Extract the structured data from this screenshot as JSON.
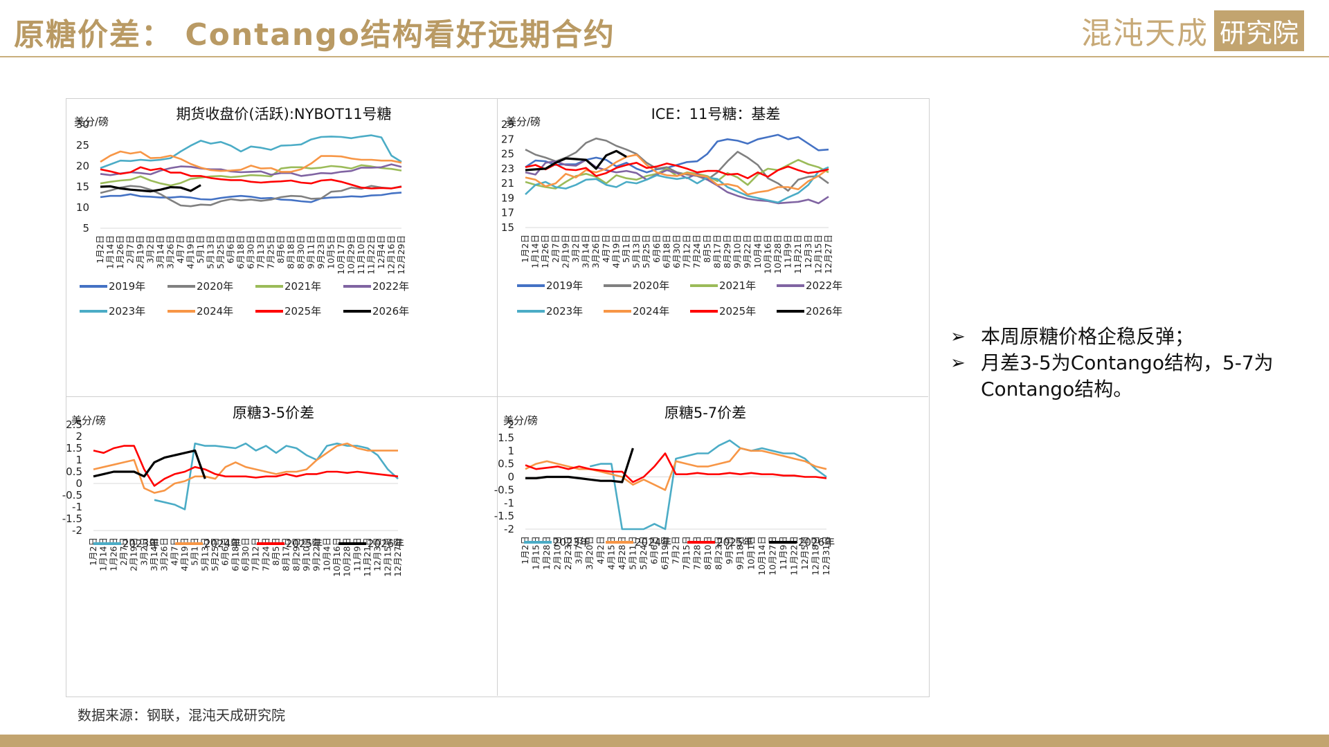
{
  "header": {
    "title": "原糖价差：  Contango结构看好远期合约",
    "logo_text": "混沌天成",
    "logo_box": "研究院"
  },
  "source": "数据来源：钢联，混沌天成研究院",
  "bullets": [
    "本周原糖价格企稳反弹；",
    "月差3-5为Contango结构，5-7为Contango结构。"
  ],
  "colors": {
    "2019年": "#4472c4",
    "2020年": "#808080",
    "2021年": "#9bbb59",
    "2022年": "#8064a2",
    "2023年": "#4bacc6",
    "2024年": "#f79646",
    "2025年": "#ff0000",
    "2026年": "#000000",
    "accent": "#c2a46f"
  },
  "chart_data": [
    {
      "type": "line",
      "title": "期货收盘价(活跃):NYBOT11号糖",
      "unit": "美分/磅",
      "y_ticks": [
        "30",
        "25",
        "20",
        "15",
        "10",
        "5"
      ],
      "ylim": [
        5,
        30
      ],
      "x_ticks": [
        "1月2日",
        "1月14日",
        "1月26日",
        "2月7日",
        "2月19日",
        "3月2日",
        "3月14日",
        "3月26日",
        "4月7日",
        "4月19日",
        "5月1日",
        "5月13日",
        "5月25日",
        "6月6日",
        "6月18日",
        "6月30日",
        "7月13日",
        "7月25日",
        "8月6日",
        "8月18日",
        "8月30日",
        "9月11日",
        "9月23日",
        "10月5日",
        "10月17日",
        "10月29日",
        "11月10日",
        "11月22日",
        "12月4日",
        "12月16日",
        "12月29日"
      ],
      "legend": [
        "2019年",
        "2020年",
        "2021年",
        "2022年",
        "2023年",
        "2024年",
        "2025年",
        "2026年"
      ],
      "series": [
        {
          "name": "2019年",
          "values": [
            12.5,
            12.8,
            12.8,
            13.2,
            12.7,
            12.6,
            12.4,
            12.4,
            12.6,
            12.4,
            12.0,
            11.9,
            12.3,
            12.6,
            12.8,
            12.6,
            12.2,
            12.3,
            11.9,
            11.8,
            11.5,
            11.3,
            12.2,
            12.4,
            12.5,
            12.7,
            12.6,
            12.9,
            13.0,
            13.4,
            13.6
          ]
        },
        {
          "name": "2020年",
          "values": [
            13.5,
            14.1,
            14.8,
            15.2,
            15.0,
            14.3,
            13.2,
            11.8,
            10.5,
            10.3,
            10.7,
            10.6,
            11.5,
            12.0,
            11.7,
            11.9,
            11.6,
            11.9,
            12.5,
            12.8,
            12.7,
            12.1,
            12.2,
            13.8,
            14.0,
            14.8,
            14.5,
            15.2,
            14.8,
            14.6,
            15.1
          ]
        },
        {
          "name": "2021年",
          "values": [
            15.8,
            16.2,
            16.5,
            16.7,
            17.5,
            16.5,
            15.8,
            15.3,
            15.9,
            16.9,
            17.2,
            17.5,
            17.6,
            17.3,
            17.5,
            17.8,
            17.7,
            17.5,
            19.4,
            19.7,
            19.7,
            19.4,
            19.6,
            20.0,
            19.8,
            19.4,
            20.2,
            19.9,
            19.5,
            19.3,
            18.9
          ]
        },
        {
          "name": "2022年",
          "values": [
            18.1,
            17.8,
            18.2,
            18.5,
            18.3,
            18.0,
            18.9,
            19.5,
            19.9,
            19.8,
            19.4,
            19.2,
            19.2,
            18.7,
            18.5,
            18.6,
            18.7,
            17.9,
            18.3,
            18.3,
            17.6,
            17.9,
            18.3,
            18.2,
            18.6,
            18.8,
            19.6,
            19.6,
            19.7,
            20.4,
            19.8
          ]
        },
        {
          "name": "2023年",
          "values": [
            19.5,
            20.4,
            21.3,
            21.2,
            21.5,
            21.3,
            21.5,
            21.9,
            23.5,
            24.9,
            26.1,
            25.4,
            25.8,
            24.9,
            23.5,
            24.7,
            24.4,
            23.9,
            24.9,
            25.0,
            25.2,
            26.4,
            27.0,
            27.1,
            27.0,
            26.7,
            27.1,
            27.4,
            26.9,
            22.5,
            21.0
          ]
        },
        {
          "name": "2024年",
          "values": [
            21.0,
            22.5,
            23.5,
            23.0,
            23.4,
            21.9,
            22.0,
            22.5,
            21.7,
            20.5,
            19.6,
            19.0,
            18.8,
            18.9,
            19.1,
            20.1,
            19.4,
            19.5,
            18.6,
            18.6,
            19.2,
            20.6,
            22.4,
            22.4,
            22.3,
            21.8,
            21.5,
            21.5,
            21.3,
            21.3,
            20.8
          ]
        },
        {
          "name": "2025年",
          "values": [
            19.2,
            18.7,
            18.1,
            18.5,
            19.7,
            19.0,
            19.4,
            18.4,
            18.4,
            17.6,
            17.6,
            17.1,
            16.8,
            16.6,
            16.6,
            16.2,
            16.0,
            16.2,
            16.3,
            16.5,
            16.0,
            15.8,
            16.5,
            16.7,
            16.2,
            15.5,
            14.8,
            14.6,
            14.7,
            14.6,
            15.0
          ]
        },
        {
          "name": "2026年",
          "values": [
            15.0,
            15.1,
            14.6,
            14.3,
            14.1,
            13.9,
            14.3,
            14.9,
            14.8,
            14.0,
            15.4
          ]
        }
      ]
    },
    {
      "type": "line",
      "title": "ICE：11号糖：基差",
      "unit": "美分/磅",
      "y_ticks": [
        "29",
        "27",
        "25",
        "23",
        "21",
        "19",
        "17",
        "15"
      ],
      "ylim": [
        15,
        29
      ],
      "x_ticks": [
        "1月2日",
        "1月14日",
        "1月26日",
        "2月7日",
        "2月19日",
        "3月2日",
        "3月14日",
        "3月26日",
        "4月7日",
        "4月19日",
        "5月1日",
        "5月13日",
        "5月25日",
        "6月6日",
        "6月18日",
        "6月30日",
        "7月12日",
        "7月24日",
        "8月5日",
        "8月17日",
        "8月29日",
        "9月10日",
        "9月22日",
        "10月4日",
        "10月16日",
        "10月28日",
        "11月9日",
        "11月21日",
        "12月3日",
        "12月15日",
        "12月27日"
      ],
      "legend": [
        "2019年",
        "2020年",
        "2021年",
        "2022年",
        "2023年",
        "2024年",
        "2025年",
        "2026年"
      ],
      "series": [
        {
          "name": "2019年",
          "values": [
            23.2,
            24.1,
            24.0,
            23.5,
            23.6,
            23.6,
            24.2,
            24.5,
            24.2,
            23.3,
            23.8,
            23.0,
            22.5,
            22.9,
            23.1,
            23.5,
            23.9,
            24.0,
            25.0,
            26.7,
            27.0,
            26.8,
            26.4,
            27.0,
            27.3,
            27.6,
            27.0,
            27.3,
            26.4,
            25.5,
            25.6
          ]
        },
        {
          "name": "2020年",
          "values": [
            25.6,
            24.9,
            24.5,
            24.0,
            24.5,
            25.2,
            26.5,
            27.1,
            26.8,
            26.1,
            25.6,
            25.0,
            23.8,
            23.0,
            23.2,
            22.5,
            22.2,
            22.0,
            21.5,
            22.5,
            24.0,
            25.3,
            24.5,
            23.5,
            21.7,
            21.0,
            20.0,
            21.5,
            21.9,
            22.0,
            21.0
          ]
        },
        {
          "name": "2021年",
          "values": [
            21.2,
            20.8,
            20.5,
            20.3,
            21.2,
            22.0,
            22.3,
            21.9,
            21.0,
            22.1,
            21.7,
            21.5,
            22.0,
            22.3,
            23.0,
            22.0,
            22.5,
            22.3,
            22.0,
            21.3,
            22.4,
            21.8,
            20.8,
            22.2,
            23.0,
            22.8,
            23.5,
            24.2,
            23.6,
            23.2,
            22.5
          ]
        },
        {
          "name": "2022年",
          "values": [
            22.5,
            22.2,
            23.8,
            24.0,
            23.5,
            23.4,
            24.2,
            23.2,
            22.8,
            22.5,
            22.7,
            22.4,
            21.5,
            22.2,
            22.8,
            22.4,
            21.7,
            22.3,
            21.5,
            20.7,
            19.8,
            19.3,
            18.9,
            18.7,
            18.6,
            18.3,
            18.4,
            18.5,
            18.8,
            18.3,
            19.2
          ]
        },
        {
          "name": "2023年",
          "values": [
            19.5,
            20.8,
            21.2,
            20.5,
            20.3,
            20.8,
            21.5,
            21.6,
            20.8,
            20.5,
            21.2,
            21.0,
            21.5,
            22.1,
            21.8,
            21.6,
            21.8,
            21.0,
            21.8,
            21.6,
            20.5,
            19.9,
            19.3,
            19.0,
            18.7,
            18.4,
            19.1,
            19.7,
            20.8,
            22.6,
            23.2
          ]
        },
        {
          "name": "2024年",
          "values": [
            21.8,
            21.5,
            20.6,
            21.0,
            22.3,
            21.8,
            22.8,
            22.5,
            23.0,
            23.9,
            24.6,
            24.9,
            23.5,
            22.5,
            22.1,
            22.0,
            22.4,
            22.1,
            21.9,
            20.8,
            20.9,
            20.6,
            19.5,
            19.8,
            20.0,
            20.5,
            20.5,
            20.2,
            21.3,
            22.0,
            23.0
          ]
        },
        {
          "name": "2025年",
          "values": [
            23.2,
            23.5,
            22.9,
            23.6,
            22.9,
            22.8,
            23.1,
            22.0,
            22.4,
            23.1,
            23.5,
            23.8,
            23.1,
            23.3,
            23.7,
            23.4,
            23.0,
            22.5,
            22.7,
            22.7,
            22.2,
            22.3,
            21.7,
            22.5,
            21.9,
            22.8,
            23.3,
            22.8,
            22.4,
            22.6,
            22.9
          ]
        },
        {
          "name": "2026年",
          "values": [
            22.8,
            22.9,
            23.0,
            23.8,
            24.4,
            24.3,
            24.2,
            23.0,
            24.8,
            25.4,
            24.6
          ]
        }
      ]
    },
    {
      "type": "line",
      "title": "原糖3-5价差",
      "unit": "美分/磅",
      "y_ticks": [
        "2.5",
        "2",
        "1.5",
        "1",
        "0.5",
        "0",
        "-0.5",
        "-1",
        "-1.5",
        "-2"
      ],
      "ylim": [
        -2,
        2.5
      ],
      "x_ticks": [
        "1月2日",
        "1月14日",
        "1月26日",
        "2月7日",
        "2月19日",
        "3月2日",
        "3月14日",
        "3月26日",
        "4月7日",
        "4月19日",
        "5月1日",
        "5月13日",
        "5月25日",
        "6月6日",
        "6月18日",
        "6月30日",
        "7月12日",
        "7月24日",
        "8月5日",
        "8月17日",
        "8月29日",
        "9月10日",
        "9月22日",
        "10月4日",
        "10月16日",
        "10月28日",
        "11月9日",
        "11月21日",
        "12月3日",
        "12月15日",
        "12月27日"
      ],
      "legend": [
        "2023年",
        "2024年",
        "2025年",
        "2026年"
      ],
      "series": [
        {
          "name": "2023年",
          "values": [
            null,
            null,
            null,
            null,
            null,
            null,
            -0.7,
            -0.8,
            -0.9,
            -1.1,
            1.7,
            1.6,
            1.6,
            1.55,
            1.5,
            1.7,
            1.4,
            1.6,
            1.3,
            1.6,
            1.5,
            1.2,
            1.0,
            1.6,
            1.7,
            1.6,
            1.6,
            1.5,
            1.2,
            0.6,
            0.2
          ]
        },
        {
          "name": "2024年",
          "values": [
            0.6,
            0.7,
            0.8,
            0.9,
            1.0,
            -0.2,
            -0.4,
            -0.3,
            0.0,
            0.1,
            0.3,
            0.3,
            0.2,
            0.7,
            0.9,
            0.7,
            0.6,
            0.5,
            0.4,
            0.5,
            0.5,
            0.6,
            1.0,
            1.3,
            1.6,
            1.7,
            1.5,
            1.4,
            1.4,
            1.4,
            1.4
          ]
        },
        {
          "name": "2025年",
          "values": [
            1.4,
            1.3,
            1.5,
            1.6,
            1.6,
            0.6,
            -0.1,
            0.2,
            0.4,
            0.5,
            0.7,
            0.6,
            0.4,
            0.3,
            0.3,
            0.3,
            0.25,
            0.3,
            0.3,
            0.4,
            0.3,
            0.4,
            0.4,
            0.5,
            0.5,
            0.45,
            0.5,
            0.45,
            0.4,
            0.35,
            0.3
          ]
        },
        {
          "name": "2026年",
          "values": [
            0.3,
            0.4,
            0.5,
            0.5,
            0.5,
            0.3,
            0.9,
            1.1,
            1.2,
            1.3,
            1.4,
            0.2
          ]
        }
      ]
    },
    {
      "type": "line",
      "title": "原糖5-7价差",
      "unit": "美分/磅",
      "y_ticks": [
        "2",
        "1.5",
        "1",
        "0.5",
        "0",
        "-0.5",
        "-1",
        "-1.5",
        "-2"
      ],
      "ylim": [
        -2,
        2
      ],
      "x_ticks": [
        "1月2日",
        "1月15日",
        "1月28日",
        "2月10日",
        "2月23日",
        "3月7日",
        "3月20日",
        "4月2日",
        "4月15日",
        "4月28日",
        "5月11日",
        "5月24日",
        "6月6日",
        "6月19日",
        "7月2日",
        "7月15日",
        "7月28日",
        "8月10日",
        "8月23日",
        "9月5日",
        "9月18日",
        "10月1日",
        "10月14日",
        "10月27日",
        "11月9日",
        "11月22日",
        "12月5日",
        "12月18日",
        "12月31日"
      ],
      "legend": [
        "2023年",
        "2024年",
        "2025年",
        "2026年"
      ],
      "series": [
        {
          "name": "2023年",
          "values": [
            null,
            null,
            null,
            null,
            null,
            null,
            0.4,
            0.5,
            0.5,
            -2.0,
            -2.0,
            -2.0,
            -1.8,
            -2.0,
            0.7,
            0.8,
            0.9,
            0.9,
            1.2,
            1.4,
            1.1,
            1.0,
            1.1,
            1.0,
            0.9,
            0.9,
            0.7,
            0.3,
            0.0
          ]
        },
        {
          "name": "2024年",
          "values": [
            0.3,
            0.5,
            0.6,
            0.5,
            0.4,
            0.3,
            0.3,
            0.2,
            0.1,
            0.0,
            -0.3,
            -0.1,
            -0.3,
            -0.5,
            0.6,
            0.5,
            0.4,
            0.4,
            0.5,
            0.6,
            1.1,
            1.0,
            1.0,
            0.9,
            0.8,
            0.7,
            0.6,
            0.4,
            0.3
          ]
        },
        {
          "name": "2025年",
          "values": [
            0.45,
            0.3,
            0.35,
            0.4,
            0.3,
            0.4,
            0.3,
            0.25,
            0.2,
            0.2,
            -0.2,
            0.0,
            0.4,
            0.9,
            0.1,
            0.1,
            0.15,
            0.1,
            0.1,
            0.15,
            0.1,
            0.15,
            0.1,
            0.1,
            0.05,
            0.05,
            0.0,
            0.0,
            -0.05
          ]
        },
        {
          "name": "2026年",
          "values": [
            -0.05,
            -0.05,
            0.0,
            0.0,
            0.0,
            -0.05,
            -0.1,
            -0.15,
            -0.15,
            -0.2,
            1.1
          ]
        }
      ]
    }
  ]
}
